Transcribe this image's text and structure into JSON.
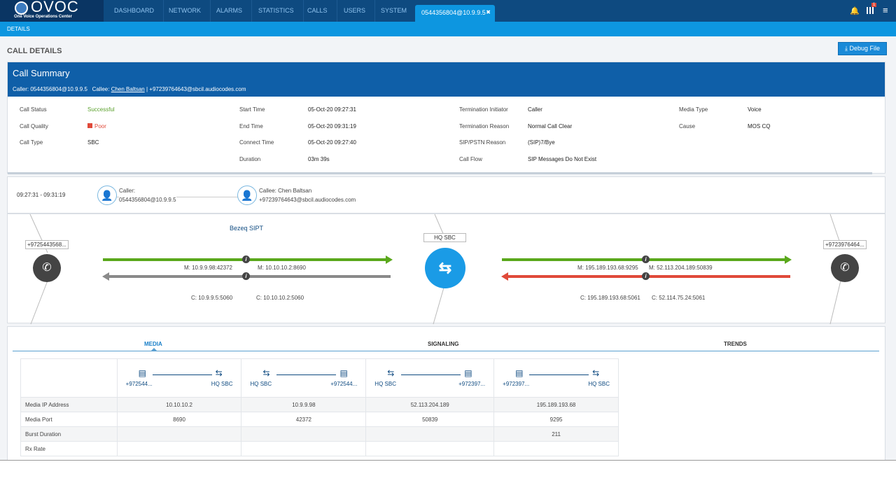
{
  "app": {
    "logo_title": "OVOC",
    "logo_subtitle": "One Voice Operations Center"
  },
  "nav": [
    "DASHBOARD",
    "NETWORK",
    "ALARMS",
    "STATISTICS",
    "CALLS",
    "USERS",
    "SYSTEM"
  ],
  "open_tab": {
    "label": "0544356804@10.9.9.5",
    "close": "✖"
  },
  "header_icons": {
    "notification_badge": "1"
  },
  "subnav": {
    "details": "DETAILS"
  },
  "page_title": "CALL DETAILS",
  "debug_button": "Debug File",
  "summary": {
    "title": "Call Summary",
    "caller_label": "Caller:",
    "caller": "0544356804@10.9.9.5",
    "callee_label": "Callee:",
    "callee_name": "Chen Baltsan",
    "callee_sep": "|",
    "callee_uri": "+97239764643@sbcil.audiocodes.com",
    "fields": [
      {
        "label": "Call Status",
        "value": "Successful"
      },
      {
        "label": "Call Quality",
        "value": "Poor"
      },
      {
        "label": "Call Type",
        "value": "SBC"
      },
      {
        "label": "Start Time",
        "value": "05-Oct-20 09:27:31"
      },
      {
        "label": "End Time",
        "value": "05-Oct-20 09:31:19"
      },
      {
        "label": "Connect Time",
        "value": "05-Oct-20 09:27:40"
      },
      {
        "label": "Duration",
        "value": "03m 39s"
      },
      {
        "label": "Termination Initiator",
        "value": "Caller"
      },
      {
        "label": "Termination Reason",
        "value": "Normal Call Clear"
      },
      {
        "label": "SIP/PSTN Reason",
        "value": "(SIP)7/Bye"
      },
      {
        "label": "Call Flow",
        "value": "SIP Messages Do Not Exist"
      },
      {
        "label": "Media Type",
        "value": "Voice"
      },
      {
        "label": "Cause",
        "value": "MOS CQ"
      }
    ],
    "colors": {
      "successful": "#5aa02c",
      "poor": "#e04a3a"
    }
  },
  "participants": {
    "time_range": "09:27:31 - 09:31:19",
    "caller_label": "Caller:",
    "caller": "0544356804@10.9.9.5",
    "callee_label": "Callee: Chen Baltsan",
    "callee": "+97239764643@sbcil.audiocodes.com"
  },
  "flow": {
    "left_endpoint": "+9725443568...",
    "right_endpoint": "+9723976464...",
    "center": "HQ SBC",
    "left_network": "Bezeq SIPT",
    "left": {
      "m1": "M: 10.9.9.98:42372",
      "m2": "M: 10.10.10.2:8690",
      "c1": "C: 10.9.9.5:5060",
      "c2": "C: 10.10.10.2:5060"
    },
    "right": {
      "m1": "M: 195.189.193.68:9295",
      "m2": "M: 52.113.204.189:50839",
      "c1": "C: 195.189.193.68:5061",
      "c2": "C: 52.114.75.24:5061"
    },
    "colors": {
      "good": "#5aa81c",
      "unknown": "#8a8a8a",
      "bad": "#e04a3a",
      "sbc": "#1a9be6"
    }
  },
  "tabs": [
    "MEDIA",
    "SIGNALING",
    "TRENDS"
  ],
  "media_table": {
    "columns": [
      {
        "from": "+972544...",
        "to": "HQ SBC"
      },
      {
        "from": "HQ SBC",
        "to": "+972544..."
      },
      {
        "from": "HQ SBC",
        "to": "+972397..."
      },
      {
        "from": "+972397...",
        "to": "HQ SBC"
      }
    ],
    "rows": [
      {
        "label": "Media IP Address",
        "values": [
          "10.10.10.2",
          "10.9.9.98",
          "52.113.204.189",
          "195.189.193.68"
        ]
      },
      {
        "label": "Media Port",
        "values": [
          "8690",
          "42372",
          "50839",
          "9295"
        ]
      },
      {
        "label": "Burst Duration",
        "values": [
          "",
          "",
          "",
          "211"
        ]
      },
      {
        "label": "Rx Rate",
        "values": [
          "",
          "",
          "",
          ""
        ]
      }
    ]
  }
}
